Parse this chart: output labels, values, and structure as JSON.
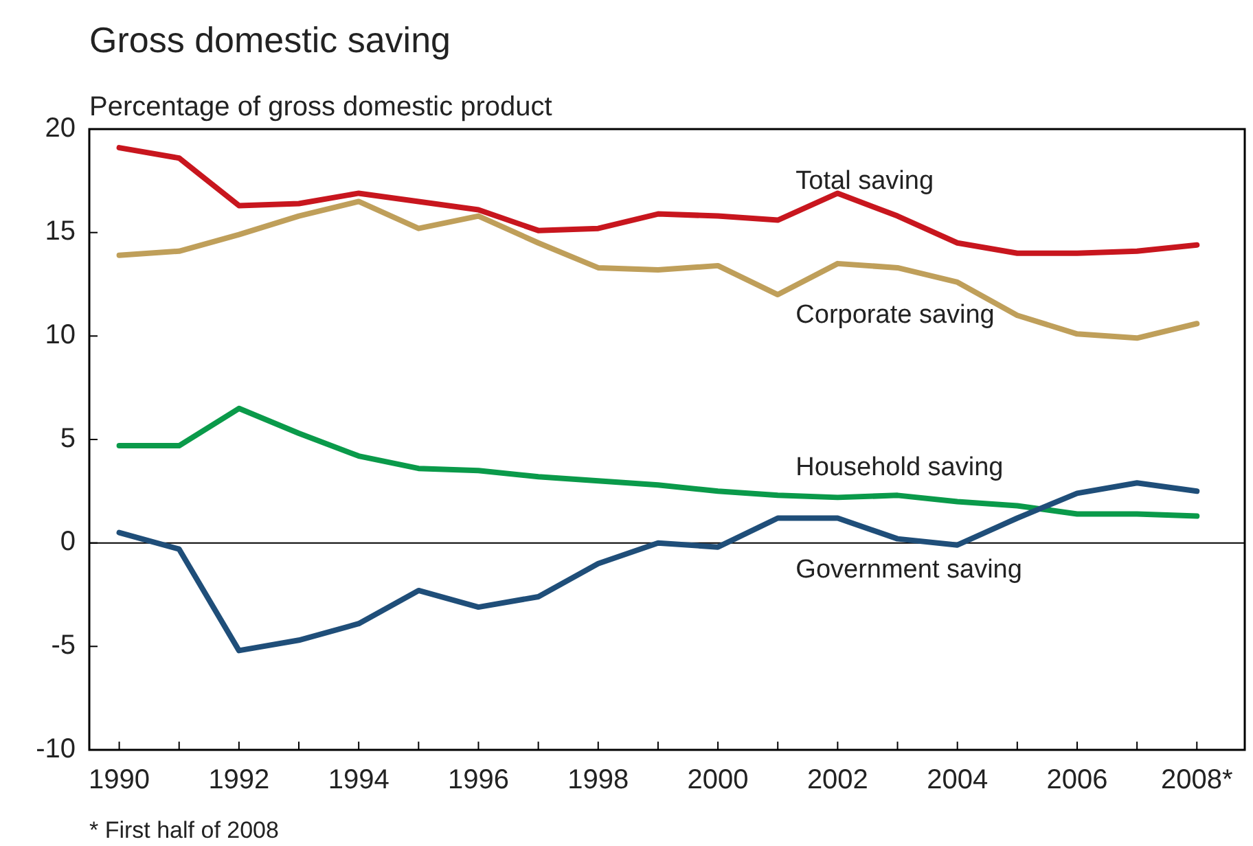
{
  "chart_data": {
    "type": "line",
    "title": "Gross domestic saving",
    "ylabel": "Percentage of gross domestic product",
    "x": [
      1990,
      1991,
      1992,
      1993,
      1994,
      1995,
      1996,
      1997,
      1998,
      1999,
      2000,
      2001,
      2002,
      2003,
      2004,
      2005,
      2006,
      2007,
      2008
    ],
    "series": [
      {
        "name": "Total saving",
        "color": "#c8161e",
        "values": [
          19.1,
          18.6,
          16.3,
          16.4,
          16.9,
          16.5,
          16.1,
          15.1,
          15.2,
          15.9,
          15.8,
          15.6,
          16.9,
          15.8,
          14.5,
          14.0,
          14.0,
          14.1,
          14.4
        ]
      },
      {
        "name": "Corporate saving",
        "color": "#bf9f5a",
        "values": [
          13.9,
          14.1,
          14.9,
          15.8,
          16.5,
          15.2,
          15.8,
          14.5,
          13.3,
          13.2,
          13.4,
          12.0,
          13.5,
          13.3,
          12.6,
          11.0,
          10.1,
          9.9,
          10.6
        ]
      },
      {
        "name": "Household saving",
        "color": "#0a9a4a",
        "values": [
          4.7,
          4.7,
          6.5,
          5.3,
          4.2,
          3.6,
          3.5,
          3.2,
          3.0,
          2.8,
          2.5,
          2.3,
          2.2,
          2.3,
          2.0,
          1.8,
          1.4,
          1.4,
          1.3
        ]
      },
      {
        "name": "Government saving",
        "color": "#1f4e79",
        "values": [
          0.5,
          -0.3,
          -5.2,
          -4.7,
          -3.9,
          -2.3,
          -3.1,
          -2.6,
          -1.0,
          0.0,
          -0.2,
          1.2,
          1.2,
          0.2,
          -0.1,
          1.2,
          2.4,
          2.9,
          2.5
        ]
      }
    ],
    "xlim": [
      1989.5,
      2008.8
    ],
    "xticks": [
      1990,
      1992,
      1994,
      1996,
      1998,
      2000,
      2002,
      2004,
      2006,
      {
        "value": 2008,
        "label": "2008*"
      }
    ],
    "ylim": [
      -10,
      20
    ],
    "yticks": [
      -10,
      -5,
      0,
      5,
      10,
      15,
      20
    ],
    "ref_lines": [
      {
        "axis": "y",
        "value": 0,
        "color": "#000000"
      }
    ],
    "annotations": [
      "* First half of 2008"
    ],
    "grid": false,
    "marker": "none",
    "line_style": "solid"
  }
}
